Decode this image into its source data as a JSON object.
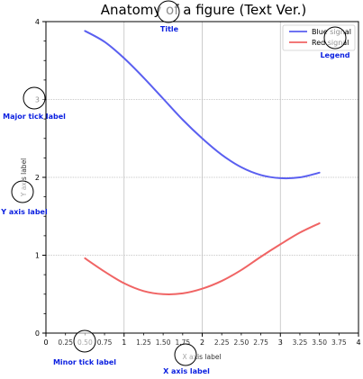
{
  "chart_data": {
    "type": "line",
    "title": "Anatomy of a figure (Text Ver.)",
    "xlabel": "X axis label",
    "ylabel": "Y axis label",
    "xlim": [
      0,
      4
    ],
    "ylim": [
      0,
      4
    ],
    "grid": true,
    "legend_position": "top-right",
    "major_x_ticks": [
      0,
      1,
      2,
      3,
      4
    ],
    "major_y_ticks": [
      0,
      1,
      2,
      3,
      4
    ],
    "minor_x_ticks": [
      0.25,
      0.5,
      0.75,
      1.25,
      1.5,
      1.75,
      2.25,
      2.5,
      2.75,
      3.25,
      3.5,
      3.75
    ],
    "minor_x_tick_labels": [
      "0.25",
      "0.50",
      "0.75",
      "1.25",
      "1.50",
      "1.75",
      "2.25",
      "2.50",
      "2.75",
      "3.25",
      "3.50",
      "3.75"
    ],
    "x": [
      0.5,
      0.75,
      1.0,
      1.25,
      1.5,
      1.75,
      2.0,
      2.25,
      2.5,
      2.75,
      3.0,
      3.25,
      3.5
    ],
    "series": [
      {
        "name": "Blue signal",
        "color": "#5a5ff0",
        "values": [
          3.88,
          3.74,
          3.53,
          3.28,
          3.01,
          2.74,
          2.5,
          2.29,
          2.13,
          2.03,
          1.99,
          2.0,
          2.06
        ]
      },
      {
        "name": "Red signal",
        "color": "#f06464",
        "values": [
          0.96,
          0.79,
          0.64,
          0.54,
          0.5,
          0.51,
          0.57,
          0.67,
          0.81,
          0.98,
          1.14,
          1.29,
          1.41
        ]
      }
    ]
  },
  "annotations": [
    {
      "id": "title",
      "text": "Title"
    },
    {
      "id": "legend",
      "text": "Legend"
    },
    {
      "id": "major-tick-label",
      "text": "Major tick label"
    },
    {
      "id": "y-axis-label",
      "text": "Y axis label"
    },
    {
      "id": "minor-tick-label",
      "text": "Minor tick label"
    },
    {
      "id": "x-axis-label",
      "text": "X axis label"
    }
  ]
}
